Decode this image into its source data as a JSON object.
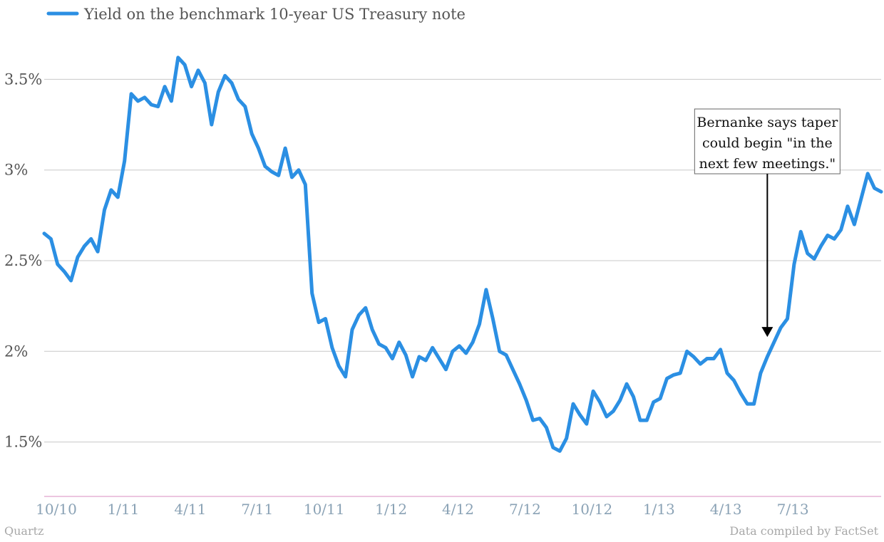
{
  "chart_data": {
    "type": "line",
    "source_left": "Quartz",
    "source_right": "Data compiled by FactSet",
    "ylim": [
      1.2,
      3.8
    ],
    "y_ticks": [
      {
        "value": 1.5,
        "label": "1.5%"
      },
      {
        "value": 2.0,
        "label": "2%"
      },
      {
        "value": 2.5,
        "label": "2.5%"
      },
      {
        "value": 3.0,
        "label": "3%"
      },
      {
        "value": 3.5,
        "label": "3.5%"
      }
    ],
    "x_ticks": [
      "10/10",
      "1/11",
      "4/11",
      "7/11",
      "10/11",
      "1/12",
      "4/12",
      "7/12",
      "10/12",
      "1/13",
      "4/13",
      "7/13"
    ],
    "x_range_months": [
      0,
      37.5
    ],
    "grid": true,
    "legend_position": "top-left",
    "colors": {
      "series": "#2b8fe3",
      "grid": "#c8c8c8",
      "baseline": "#d98cc0",
      "annotation": "#000000"
    },
    "series": [
      {
        "name": "Yield on the benchmark 10-year US Treasury note",
        "x_months": [
          0.0,
          0.3,
          0.6,
          0.9,
          1.2,
          1.5,
          1.8,
          2.1,
          2.4,
          2.7,
          3.0,
          3.3,
          3.6,
          3.9,
          4.2,
          4.5,
          4.8,
          5.1,
          5.4,
          5.7,
          6.0,
          6.3,
          6.6,
          6.9,
          7.2,
          7.5,
          7.8,
          8.1,
          8.4,
          8.7,
          9.0,
          9.3,
          9.6,
          9.9,
          10.2,
          10.5,
          10.8,
          11.1,
          11.4,
          11.7,
          12.0,
          12.3,
          12.6,
          12.9,
          13.2,
          13.5,
          13.8,
          14.1,
          14.4,
          14.7,
          15.0,
          15.3,
          15.6,
          15.9,
          16.2,
          16.5,
          16.8,
          17.1,
          17.4,
          17.7,
          18.0,
          18.3,
          18.6,
          18.9,
          19.2,
          19.5,
          19.8,
          20.1,
          20.4,
          20.7,
          21.0,
          21.3,
          21.6,
          21.9,
          22.2,
          22.5,
          22.8,
          23.1,
          23.4,
          23.7,
          24.0,
          24.3,
          24.6,
          24.9,
          25.2,
          25.5,
          25.8,
          26.1,
          26.4,
          26.7,
          27.0,
          27.3,
          27.6,
          27.9,
          28.2,
          28.5,
          28.8,
          29.1,
          29.4,
          29.7,
          30.0,
          30.3,
          30.6,
          30.9,
          31.2,
          31.5,
          31.8,
          32.1,
          32.4,
          32.7,
          33.0,
          33.3,
          33.6,
          33.9,
          34.2,
          34.5,
          34.8,
          35.1,
          35.4,
          35.7,
          36.0,
          36.3,
          36.6,
          36.9,
          37.2,
          37.5
        ],
        "values": [
          2.65,
          2.62,
          2.48,
          2.44,
          2.39,
          2.52,
          2.58,
          2.62,
          2.55,
          2.78,
          2.89,
          2.85,
          3.05,
          3.42,
          3.38,
          3.4,
          3.36,
          3.35,
          3.46,
          3.38,
          3.62,
          3.58,
          3.46,
          3.55,
          3.48,
          3.25,
          3.43,
          3.52,
          3.48,
          3.39,
          3.35,
          3.2,
          3.12,
          3.02,
          2.99,
          2.97,
          3.12,
          2.96,
          3.0,
          2.92,
          2.32,
          2.16,
          2.18,
          2.02,
          1.92,
          1.86,
          2.12,
          2.2,
          2.24,
          2.12,
          2.04,
          2.02,
          1.96,
          2.05,
          1.98,
          1.86,
          1.97,
          1.95,
          2.02,
          1.96,
          1.9,
          2.0,
          2.03,
          1.99,
          2.05,
          2.15,
          2.34,
          2.18,
          2.0,
          1.98,
          1.9,
          1.82,
          1.73,
          1.62,
          1.63,
          1.58,
          1.47,
          1.45,
          1.52,
          1.71,
          1.65,
          1.6,
          1.78,
          1.72,
          1.64,
          1.67,
          1.73,
          1.82,
          1.75,
          1.62,
          1.62,
          1.72,
          1.74,
          1.85,
          1.87,
          1.88,
          2.0,
          1.97,
          1.93,
          1.96,
          1.96,
          2.01,
          1.88,
          1.84,
          1.77,
          1.71,
          1.71,
          1.88,
          1.97,
          2.05,
          2.13,
          2.18,
          2.48,
          2.66,
          2.54,
          2.51,
          2.58,
          2.64,
          2.62,
          2.67,
          2.8,
          2.7,
          2.84,
          2.98,
          2.9,
          2.88
        ]
      }
    ],
    "annotation": {
      "text_lines": [
        "Bernanke says taper",
        "could begin \"in the",
        "next few meetings.\""
      ],
      "x_month": 32.4,
      "value": 2.04
    }
  }
}
